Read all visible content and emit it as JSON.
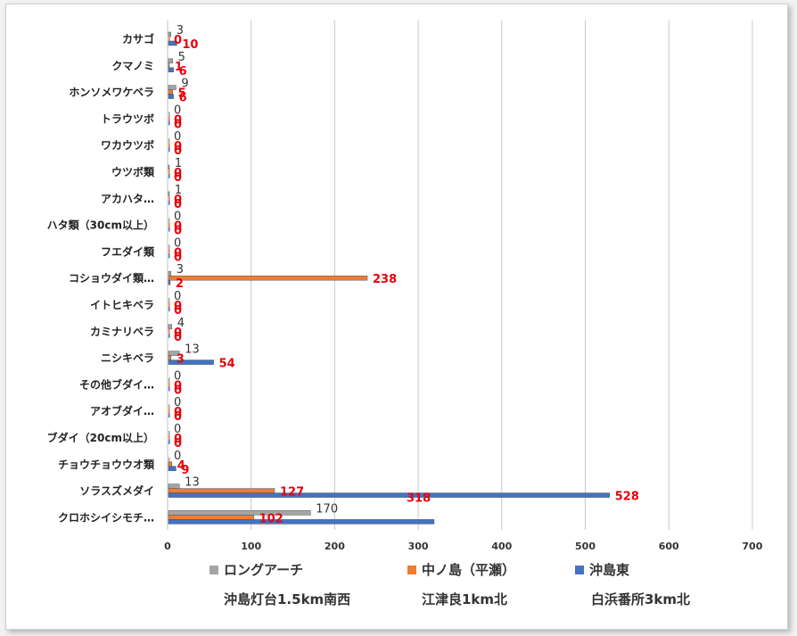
{
  "chart_data": {
    "type": "bar",
    "orientation": "horizontal",
    "categories": [
      "カサゴ",
      "クマノミ",
      "ホンソメワケベラ",
      "トラウツボ",
      "ワカウツボ",
      "ウツボ類",
      "アカハタ…",
      "ハタ類（30cm以上）",
      "フエダイ類",
      "コショウダイ類…",
      "イトヒキベラ",
      "カミナリベラ",
      "ニシキベラ",
      "その他ブダイ…",
      "アオブダイ…",
      "ブダイ（20cm以上）",
      "チョウチョウウオ類",
      "ソラスズメダイ",
      "クロホシイシモチ…"
    ],
    "series": [
      {
        "name": "ロングアーチ",
        "subtitle": "沖島灯台1.5km南西",
        "color": "#a5a5a5",
        "values": [
          3,
          5,
          9,
          0,
          0,
          1,
          1,
          0,
          0,
          3,
          0,
          4,
          13,
          0,
          0,
          0,
          0,
          13,
          170
        ]
      },
      {
        "name": "中ノ島（平瀬）",
        "subtitle": "江津良1km北",
        "color": "#ed7d31",
        "values": [
          0,
          1,
          5,
          0,
          0,
          0,
          0,
          0,
          0,
          238,
          0,
          0,
          3,
          0,
          0,
          0,
          4,
          127,
          102
        ]
      },
      {
        "name": "沖島東",
        "subtitle": "白浜番所3km北",
        "color": "#4472c4",
        "values": [
          10,
          6,
          6,
          0,
          0,
          0,
          0,
          0,
          0,
          2,
          0,
          0,
          54,
          0,
          0,
          0,
          9,
          528,
          318
        ]
      }
    ],
    "xlim": [
      0,
      700
    ],
    "xticks": [
      "0",
      "100",
      "200",
      "300",
      "400",
      "500",
      "600",
      "700"
    ],
    "grid": "vertical",
    "legend_position": "bottom",
    "title": "",
    "xlabel": "",
    "ylabel": ""
  }
}
